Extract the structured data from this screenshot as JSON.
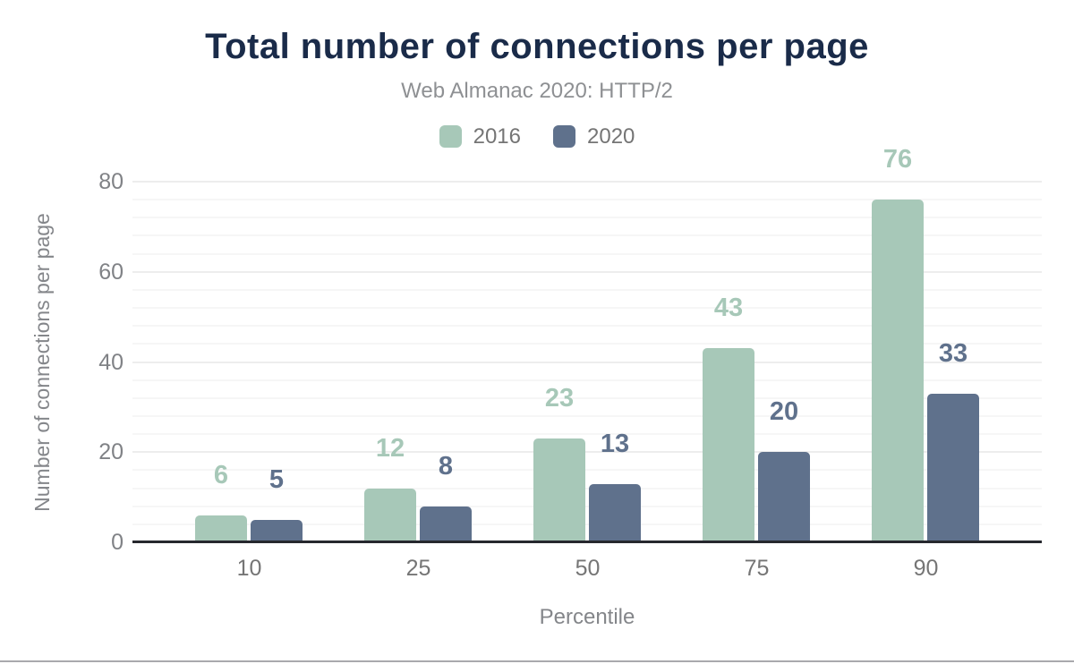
{
  "chart_data": {
    "type": "bar",
    "title": "Total number of connections per page",
    "subtitle": "Web Almanac 2020: HTTP/2",
    "categories": [
      "10",
      "25",
      "50",
      "75",
      "90"
    ],
    "series": [
      {
        "name": "2016",
        "color": "#a7c8b8",
        "values": [
          6,
          12,
          23,
          43,
          76
        ]
      },
      {
        "name": "2020",
        "color": "#5f718c",
        "values": [
          5,
          8,
          13,
          20,
          33
        ]
      }
    ],
    "xlabel": "Percentile",
    "ylabel": "Number of connections per page",
    "y_ticks": [
      0,
      20,
      40,
      60,
      80
    ],
    "ylim": [
      0,
      80
    ],
    "grid": "horizontal; minor every 4 units, major every 20 units",
    "legend_position": "top-center",
    "value_labels": true
  },
  "colors": {
    "title_text": "#1a2b49",
    "subtitle_text": "#8e9093",
    "axis_text": "#808286",
    "axis_line": "#26282e",
    "grid_major": "#ededed",
    "grid_minor": "#f6f6f6",
    "background": "#ffffff",
    "bottom_rule": "#a9a9ad"
  }
}
